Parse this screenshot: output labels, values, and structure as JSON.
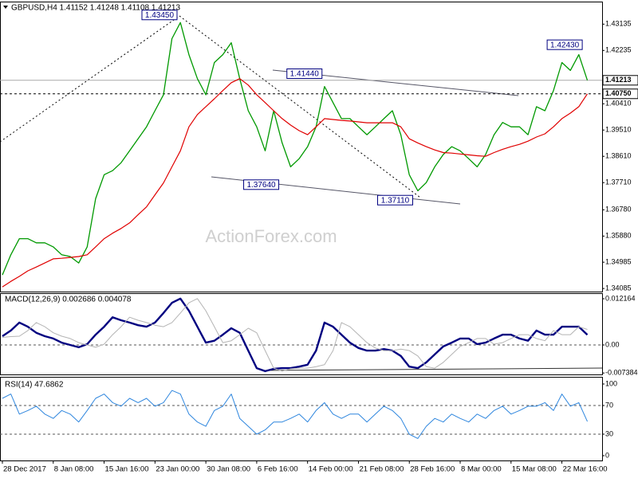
{
  "chart_data": [
    {
      "type": "line",
      "title": "GBPUSD,H4  1.41152 1.41248 1.41108 1.41213",
      "watermark": "ActionForex.com",
      "categories": [
        "28 Dec 2017",
        null,
        null,
        null,
        null,
        null,
        "8 Jan 08:00",
        null,
        null,
        null,
        null,
        null,
        "15 Jan 16:00",
        null,
        null,
        null,
        null,
        null,
        "23 Jan 00:00",
        null,
        null,
        null,
        null,
        null,
        "30 Jan 08:00",
        null,
        null,
        null,
        null,
        null,
        "6 Feb 16:00",
        null,
        null,
        null,
        null,
        null,
        "14 Feb 00:00",
        null,
        null,
        null,
        null,
        null,
        "21 Feb 08:00",
        null,
        null,
        null,
        null,
        null,
        "28 Feb 16:00",
        null,
        null,
        null,
        null,
        null,
        "8 Mar 00:00",
        null,
        null,
        null,
        null,
        null,
        "15 Mar 08:00",
        null,
        null,
        null,
        null,
        null,
        "22 Mar 16:00",
        null,
        null,
        null
      ],
      "series": [
        {
          "name": "GBPUSD",
          "color": "#009900",
          "width": 1.3,
          "values": [
            1.3455,
            1.3524,
            1.3579,
            1.3579,
            1.3565,
            1.3565,
            1.3551,
            1.3524,
            1.3518,
            1.3496,
            1.3551,
            1.3716,
            1.3798,
            1.3812,
            1.3839,
            1.388,
            1.3921,
            1.3962,
            1.4017,
            1.4072,
            1.4264,
            1.4319,
            1.4209,
            1.4127,
            1.4072,
            1.4182,
            1.4209,
            1.425,
            1.4127,
            1.4017,
            1.3962,
            1.388,
            1.4017,
            1.3907,
            1.3825,
            1.3853,
            1.3894,
            1.3962,
            1.41,
            1.4045,
            1.399,
            1.399,
            1.3962,
            1.3935,
            1.3962,
            1.399,
            1.4017,
            1.3935,
            1.3798,
            1.3743,
            1.3771,
            1.3825,
            1.3867,
            1.3894,
            1.388,
            1.3853,
            1.3825,
            1.3867,
            1.3935,
            1.3977,
            1.3962,
            1.3962,
            1.3935,
            1.4031,
            1.4017,
            1.4086,
            1.4182,
            1.4155,
            1.4209,
            1.41213
          ]
        },
        {
          "name": "MA",
          "color": "#e00000",
          "width": 1.2,
          "values": [
            1.3414,
            1.3433,
            1.345,
            1.3469,
            1.3482,
            1.3496,
            1.351,
            1.3512,
            1.3515,
            1.3518,
            1.3524,
            1.3551,
            1.3579,
            1.3598,
            1.3614,
            1.3633,
            1.3661,
            1.3688,
            1.3729,
            1.377,
            1.3825,
            1.388,
            1.3962,
            1.4004,
            1.4031,
            1.4058,
            1.4086,
            1.4113,
            1.4127,
            1.4105,
            1.4072,
            1.4045,
            1.4017,
            1.399,
            1.3968,
            1.3949,
            1.3935,
            1.3962,
            1.399,
            1.3987,
            1.3984,
            1.3982,
            1.3979,
            1.3976,
            1.3976,
            1.3976,
            1.3976,
            1.3962,
            1.3921,
            1.3907,
            1.3894,
            1.3883,
            1.3874,
            1.3872,
            1.3869,
            1.3866,
            1.3863,
            1.3861,
            1.3874,
            1.3885,
            1.3894,
            1.3902,
            1.3913,
            1.3927,
            1.3938,
            1.3962,
            1.399,
            1.4009,
            1.4031,
            1.4075
          ]
        }
      ],
      "ylim": [
        1.3398,
        1.4388
      ],
      "yticks": [
        1.43135,
        1.42235,
        {
          "value": 1.4041,
          "label": "1.40410"
        },
        {
          "value": 1.3951,
          "label": "1.39510"
        },
        {
          "value": 1.3861,
          "label": "1.38610"
        },
        {
          "value": 1.3771,
          "label": "1.37710"
        },
        {
          "value": 1.3678,
          "label": "1.36780"
        },
        {
          "value": 1.3588,
          "label": "1.35880"
        },
        1.34985,
        1.34085
      ],
      "hlines": [
        {
          "value": 1.41213,
          "style": "solid"
        },
        {
          "value": 1.4075,
          "label": "1.40750",
          "style": "dashed"
        }
      ],
      "annotations": [
        {
          "text": "1.43450",
          "x": 20.6,
          "y": 1.4345
        },
        {
          "text": "1.41440",
          "x": 37.7,
          "y": 1.4144
        },
        {
          "text": "1.37640",
          "x": 32.6,
          "y": 1.3764
        },
        {
          "text": "1.37110",
          "x": 48.4,
          "y": 1.3711
        },
        {
          "text": "1.42430",
          "x": 68.4,
          "y": 1.4243
        }
      ]
    },
    {
      "type": "line",
      "title": "MACD(12,26,9) 0.002686 0.004078",
      "series": [
        {
          "name": "MACD",
          "color": "#000080",
          "width": 2.4,
          "values": [
            0.0023,
            0.0038,
            0.0059,
            0.0048,
            0.0032,
            0.0023,
            0.0017,
            0.0006,
            0,
            -0.0006,
            0.0002,
            0.0027,
            0.0048,
            0.0073,
            0.0065,
            0.0059,
            0.0052,
            0.0048,
            0.0059,
            0.0084,
            0.0111,
            0.0122,
            0.009,
            0.0048,
            0.0006,
            0.0011,
            0.0027,
            0.0044,
            0.0032,
            -0.0015,
            -0.0061,
            -0.0069,
            -0.0063,
            -0.0061,
            -0.0061,
            -0.0057,
            -0.0052,
            -0.0015,
            0.0059,
            0.0048,
            0.0027,
            0.0006,
            -0.0008,
            -0.0015,
            -0.0015,
            -0.0011,
            -0.0015,
            -0.0029,
            -0.0057,
            -0.0061,
            -0.0046,
            -0.0025,
            -0.0004,
            0.0006,
            0.0017,
            0.0017,
            0.0002,
            0.0006,
            0.0017,
            0.0027,
            0.0027,
            0.0017,
            0.0011,
            0.0038,
            0.0027,
            0.0027,
            0.0048,
            0.0048,
            0.0048,
            0.002686
          ]
        },
        {
          "name": "Signal",
          "color": "#b4b4b4",
          "width": 1,
          "values": [
            0.002,
            0.0022,
            0.0023,
            0.0038,
            0.0059,
            0.0048,
            0.0032,
            0.0023,
            0.0017,
            0.0006,
            0,
            -0.0006,
            0.0002,
            0.0027,
            0.0048,
            0.0073,
            0.0065,
            0.0059,
            0.0052,
            0.0048,
            0.0059,
            0.0084,
            0.0111,
            0.0122,
            0.009,
            0.0048,
            0.0006,
            0.0011,
            0.0027,
            0.0044,
            0.0032,
            -0.0015,
            -0.0061,
            -0.0069,
            -0.0063,
            -0.0061,
            -0.0061,
            -0.0057,
            -0.0052,
            -0.0015,
            0.0059,
            0.0048,
            0.0027,
            0.0006,
            -0.0008,
            -0.0015,
            -0.0015,
            -0.0011,
            -0.0015,
            -0.0029,
            -0.0057,
            -0.0061,
            -0.0046,
            -0.0025,
            -0.0004,
            0.0006,
            0.0017,
            0.0017,
            0.0002,
            0.0006,
            0.0017,
            0.0027,
            0.0027,
            0.0017,
            0.0011,
            0.0038,
            0.0027,
            0.0027,
            0.0048,
            0.004078
          ]
        }
      ],
      "ylim": [
        -0.00776,
        0.01342
      ],
      "yticks": [
        0.012164,
        {
          "value": 0,
          "label": "0.00"
        },
        -0.007384
      ],
      "levels": [
        0
      ]
    },
    {
      "type": "line",
      "title": "RSI(14) 47.6862",
      "series": [
        {
          "name": "RSI",
          "color": "#2e86de",
          "width": 1,
          "values": [
            80,
            86,
            58,
            63,
            69,
            58,
            52,
            63,
            58,
            47,
            63,
            80,
            86,
            74,
            69,
            80,
            74,
            80,
            69,
            74,
            91,
            86,
            58,
            47,
            41,
            63,
            69,
            86,
            52,
            41,
            30,
            36,
            47,
            47,
            52,
            58,
            47,
            63,
            74,
            58,
            52,
            58,
            58,
            47,
            58,
            69,
            63,
            52,
            30,
            24,
            41,
            52,
            47,
            58,
            52,
            47,
            58,
            52,
            63,
            69,
            58,
            63,
            69,
            69,
            74,
            63,
            86,
            69,
            74,
            47.6862
          ]
        }
      ],
      "ylim": [
        -6.7,
        108.9
      ],
      "yticks": [
        100,
        70,
        30,
        0
      ],
      "levels": [
        70,
        30
      ]
    }
  ]
}
